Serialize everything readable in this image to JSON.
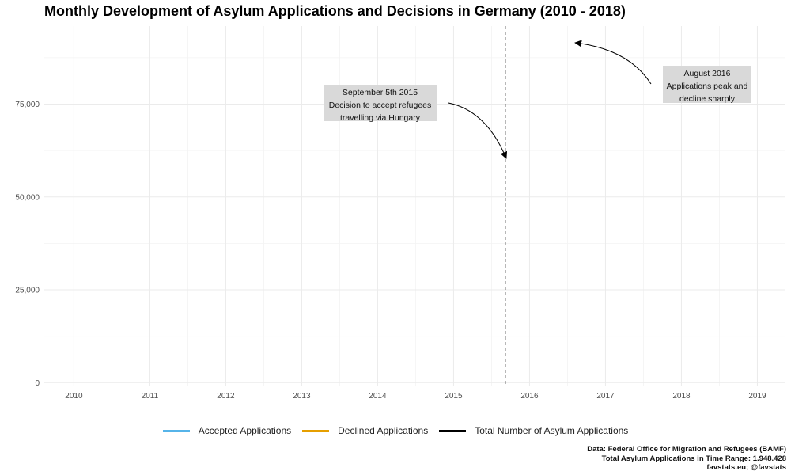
{
  "title": "Monthly Development of Asylum Applications and Decisions in Germany (2010 - 2018)",
  "chart_data": {
    "type": "line",
    "title": "Monthly Development of Asylum Applications and Decisions in Germany (2010 - 2018)",
    "xlabel": "",
    "ylabel": "",
    "x_ticks": [
      "2010",
      "2011",
      "2012",
      "2013",
      "2014",
      "2015",
      "2016",
      "2017",
      "2018",
      "2019"
    ],
    "xlim": [
      2009.6,
      2019.37
    ],
    "y_ticks": [
      0,
      25000,
      50000,
      75000
    ],
    "y_tick_labels": [
      "0",
      "25,000",
      "50,000",
      "75,000"
    ],
    "ylim": [
      -1000,
      96000
    ],
    "grid": true,
    "series": [
      {
        "name": "Accepted Applications",
        "color": "#56b4e9",
        "values": []
      },
      {
        "name": "Declined Applications",
        "color": "#e69f00",
        "values": []
      },
      {
        "name": "Total Number of Asylum Applications",
        "color": "#000000",
        "values": []
      }
    ],
    "reference_line": {
      "x": 2015.68,
      "style": "dashed",
      "color": "#000000"
    },
    "annotations": [
      {
        "lines": [
          "September 5th 2015",
          "Decision to accept refugees",
          "travelling via Hungary"
        ],
        "arrow_to": {
          "x": 2015.68,
          "y": 60000
        }
      },
      {
        "lines": [
          "August 2016",
          "Applications peak and",
          "decline sharply"
        ],
        "arrow_to": {
          "x": 2016.6,
          "y": 91000
        }
      }
    ]
  },
  "legend": [
    {
      "label": "Accepted Applications",
      "color": "#56b4e9"
    },
    {
      "label": "Declined Applications",
      "color": "#e69f00"
    },
    {
      "label": "Total Number of Asylum Applications",
      "color": "#000000"
    }
  ],
  "caption": {
    "line1": "Data: Federal Office for Migration and Refugees (BAMF)",
    "line2": "Total Asylum Applications in Time Range: 1.948.428",
    "line3": "favstats.eu; @favstats"
  }
}
